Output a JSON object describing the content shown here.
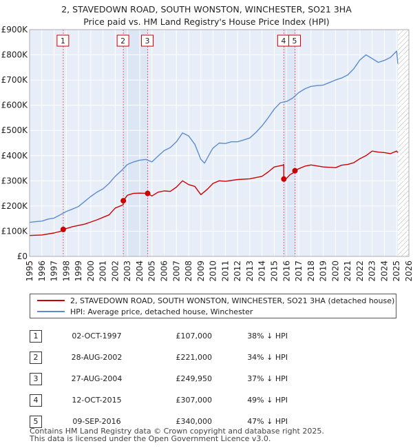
{
  "header": {
    "title_line1": "2, STAVEDOWN ROAD, SOUTH WONSTON, WINCHESTER, SO21 3HA",
    "title_line2": "Price paid vs. HM Land Registry's House Price Index (HPI)"
  },
  "legend": {
    "property_label": "2, STAVEDOWN ROAD, SOUTH WONSTON, WINCHESTER, SO21 3HA (detached house)",
    "hpi_label": "HPI: Average price, detached house, Winchester"
  },
  "colors": {
    "property": "#cc0000",
    "hpi": "#5b8ccf",
    "plot_bg": "#e8eef8",
    "shade": "#dde6f4"
  },
  "sales": [
    {
      "num": "1",
      "date": "02-OCT-1997",
      "price": "£107,000",
      "hpi": "38% ↓ HPI"
    },
    {
      "num": "2",
      "date": "28-AUG-2002",
      "price": "£221,000",
      "hpi": "34% ↓ HPI"
    },
    {
      "num": "3",
      "date": "27-AUG-2004",
      "price": "£249,950",
      "hpi": "37% ↓ HPI"
    },
    {
      "num": "4",
      "date": "12-OCT-2015",
      "price": "£307,000",
      "hpi": "49% ↓ HPI"
    },
    {
      "num": "5",
      "date": "09-SEP-2016",
      "price": "£340,000",
      "hpi": "47% ↓ HPI"
    }
  ],
  "footer": {
    "line1": "Contains HM Land Registry data © Crown copyright and database right 2025.",
    "line2": "This data is licensed under the Open Government Licence v3.0."
  },
  "chart_data": {
    "type": "line",
    "xlim": [
      1995,
      2026
    ],
    "ylim": [
      0,
      900000
    ],
    "x_ticks": [
      "1995",
      "1996",
      "1997",
      "1998",
      "1999",
      "2000",
      "2001",
      "2002",
      "2003",
      "2004",
      "2005",
      "2006",
      "2007",
      "2008",
      "2009",
      "2010",
      "2011",
      "2012",
      "2013",
      "2014",
      "2015",
      "2016",
      "2017",
      "2018",
      "2019",
      "2020",
      "2021",
      "2022",
      "2023",
      "2024",
      "2025",
      "2026"
    ],
    "y_ticks": [
      {
        "value": 0,
        "label": "£0"
      },
      {
        "value": 100000,
        "label": "£100K"
      },
      {
        "value": 200000,
        "label": "£200K"
      },
      {
        "value": 300000,
        "label": "£300K"
      },
      {
        "value": 400000,
        "label": "£400K"
      },
      {
        "value": 500000,
        "label": "£500K"
      },
      {
        "value": 600000,
        "label": "£600K"
      },
      {
        "value": 700000,
        "label": "£700K"
      },
      {
        "value": 800000,
        "label": "£800K"
      },
      {
        "value": 900000,
        "label": "£900K"
      }
    ],
    "forecast_from": 2025.1,
    "sale_markers": [
      {
        "label": "1",
        "x": 1997.75,
        "y": 107000
      },
      {
        "label": "2",
        "x": 2002.66,
        "y": 221000
      },
      {
        "label": "3",
        "x": 2004.65,
        "y": 249950
      },
      {
        "label": "4",
        "x": 2015.78,
        "y": 307000
      },
      {
        "label": "5",
        "x": 2016.69,
        "y": 340000
      }
    ],
    "series": [
      {
        "name": "2, STAVEDOWN ROAD, SOUTH WONSTON, WINCHESTER, SO21 3HA (detached house)",
        "color": "#cc0000",
        "x": [
          1995.0,
          1996.0,
          1997.0,
          1997.74,
          1997.75,
          1998.5,
          1999.5,
          2000.5,
          2001.5,
          2002.0,
          2002.65,
          2002.66,
          2003.0,
          2003.5,
          2004.0,
          2004.64,
          2004.65,
          2005.0,
          2005.5,
          2006.0,
          2006.5,
          2007.0,
          2007.5,
          2008.0,
          2008.5,
          2009.0,
          2009.5,
          2010.0,
          2010.5,
          2011.0,
          2012.0,
          2013.0,
          2014.0,
          2014.5,
          2015.0,
          2015.7,
          2015.77,
          2015.78,
          2016.0,
          2016.3,
          2016.68,
          2016.69,
          2017.0,
          2017.5,
          2018.0,
          2019.0,
          2020.0,
          2020.5,
          2021.0,
          2021.5,
          2022.0,
          2022.5,
          2023.0,
          2023.5,
          2024.0,
          2024.5,
          2025.0,
          2025.1
        ],
        "values": [
          83000,
          85000,
          93000,
          102000,
          107000,
          118000,
          128000,
          145000,
          165000,
          192000,
          205000,
          221000,
          243000,
          250000,
          251000,
          250000,
          249950,
          240000,
          255000,
          260000,
          258000,
          275000,
          300000,
          285000,
          278000,
          245000,
          265000,
          290000,
          300000,
          298000,
          305000,
          308000,
          318000,
          335000,
          355000,
          362000,
          365000,
          307000,
          310000,
          325000,
          335000,
          340000,
          348000,
          358000,
          363000,
          355000,
          352000,
          362000,
          365000,
          372000,
          388000,
          400000,
          418000,
          414000,
          412000,
          408000,
          418000,
          412000
        ]
      },
      {
        "name": "HPI: Average price, detached house, Winchester",
        "color": "#5b8ccf",
        "x": [
          1995.0,
          1995.5,
          1996.0,
          1996.5,
          1997.0,
          1997.5,
          1998.0,
          1998.5,
          1999.0,
          1999.5,
          2000.0,
          2000.5,
          2001.0,
          2001.5,
          2002.0,
          2002.5,
          2003.0,
          2003.5,
          2004.0,
          2004.5,
          2005.0,
          2005.5,
          2006.0,
          2006.5,
          2007.0,
          2007.5,
          2008.0,
          2008.5,
          2009.0,
          2009.3,
          2009.8,
          2010.0,
          2010.5,
          2011.0,
          2011.5,
          2012.0,
          2012.5,
          2013.0,
          2013.5,
          2014.0,
          2014.5,
          2015.0,
          2015.5,
          2016.0,
          2016.5,
          2017.0,
          2017.5,
          2018.0,
          2018.5,
          2019.0,
          2019.5,
          2020.0,
          2020.5,
          2021.0,
          2021.5,
          2022.0,
          2022.5,
          2023.0,
          2023.5,
          2024.0,
          2024.5,
          2025.0,
          2025.1
        ],
        "values": [
          135000,
          138000,
          140000,
          148000,
          152000,
          165000,
          178000,
          188000,
          198000,
          218000,
          238000,
          255000,
          268000,
          290000,
          318000,
          340000,
          365000,
          375000,
          382000,
          385000,
          375000,
          398000,
          420000,
          432000,
          455000,
          490000,
          478000,
          445000,
          385000,
          370000,
          415000,
          430000,
          450000,
          448000,
          455000,
          455000,
          462000,
          470000,
          492000,
          518000,
          550000,
          585000,
          610000,
          615000,
          628000,
          650000,
          665000,
          675000,
          678000,
          680000,
          690000,
          700000,
          708000,
          720000,
          745000,
          780000,
          800000,
          785000,
          770000,
          778000,
          790000,
          815000,
          765000
        ]
      }
    ]
  }
}
